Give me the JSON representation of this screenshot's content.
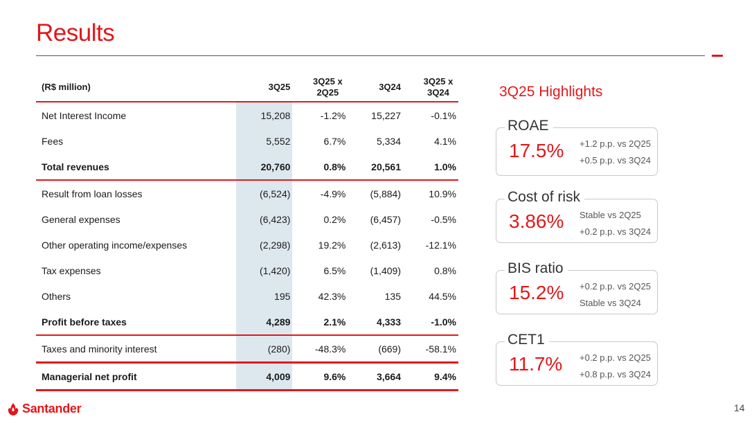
{
  "page": {
    "title": "Results",
    "page_number": "14"
  },
  "brand": {
    "name": "Santander",
    "color": "#e2171b"
  },
  "table": {
    "headers": [
      "(R$ million)",
      "3Q25",
      "3Q25 x 2Q25",
      "3Q24",
      "3Q25 x 3Q24"
    ],
    "rows": [
      {
        "label": "Net Interest Income",
        "values": [
          "15,208",
          "-1.2%",
          "15,227",
          "-0.1%"
        ]
      },
      {
        "label": "Fees",
        "values": [
          "5,552",
          "6.7%",
          "5,334",
          "4.1%"
        ]
      },
      {
        "label": "Total revenues",
        "values": [
          "20,760",
          "0.8%",
          "20,561",
          "1.0%"
        ]
      },
      {
        "label": "Result from loan losses",
        "values": [
          "(6,524)",
          "-4.9%",
          "(5,884)",
          "10.9%"
        ]
      },
      {
        "label": "General expenses",
        "values": [
          "(6,423)",
          "0.2%",
          "(6,457)",
          "-0.5%"
        ]
      },
      {
        "label": "Other operating income/expenses",
        "values": [
          "(2,298)",
          "19.2%",
          "(2,613)",
          "-12.1%"
        ]
      },
      {
        "label": "Tax expenses",
        "values": [
          "(1,420)",
          "6.5%",
          "(1,409)",
          "0.8%"
        ]
      },
      {
        "label": "Others",
        "values": [
          "195",
          "42.3%",
          "135",
          "44.5%"
        ]
      },
      {
        "label": "Profit before taxes",
        "values": [
          "4,289",
          "2.1%",
          "4,333",
          "-1.0%"
        ]
      },
      {
        "label": "Taxes and minority interest",
        "values": [
          "(280)",
          "-48.3%",
          "(669)",
          "-58.1%"
        ]
      },
      {
        "label": "Managerial net profit",
        "values": [
          "4,009",
          "9.6%",
          "3,664",
          "9.4%"
        ]
      }
    ]
  },
  "highlights": {
    "title": "3Q25 Highlights",
    "kpis": [
      {
        "label": "ROAE",
        "value": "17.5%",
        "line1": "+1.2 p.p. vs 2Q25",
        "line2": "+0.5 p.p. vs 3Q24"
      },
      {
        "label": "Cost of risk",
        "value": "3.86%",
        "line1": "Stable vs 2Q25",
        "line2": "+0.2 p.p. vs 3Q24"
      },
      {
        "label": "BIS ratio",
        "value": "15.2%",
        "line1": "+0.2 p.p. vs 2Q25",
        "line2": "Stable vs 3Q24"
      },
      {
        "label": "CET1",
        "value": "11.7%",
        "line1": "+0.2 p.p. vs 2Q25",
        "line2": "+0.8 p.p. vs 3Q24"
      }
    ]
  }
}
